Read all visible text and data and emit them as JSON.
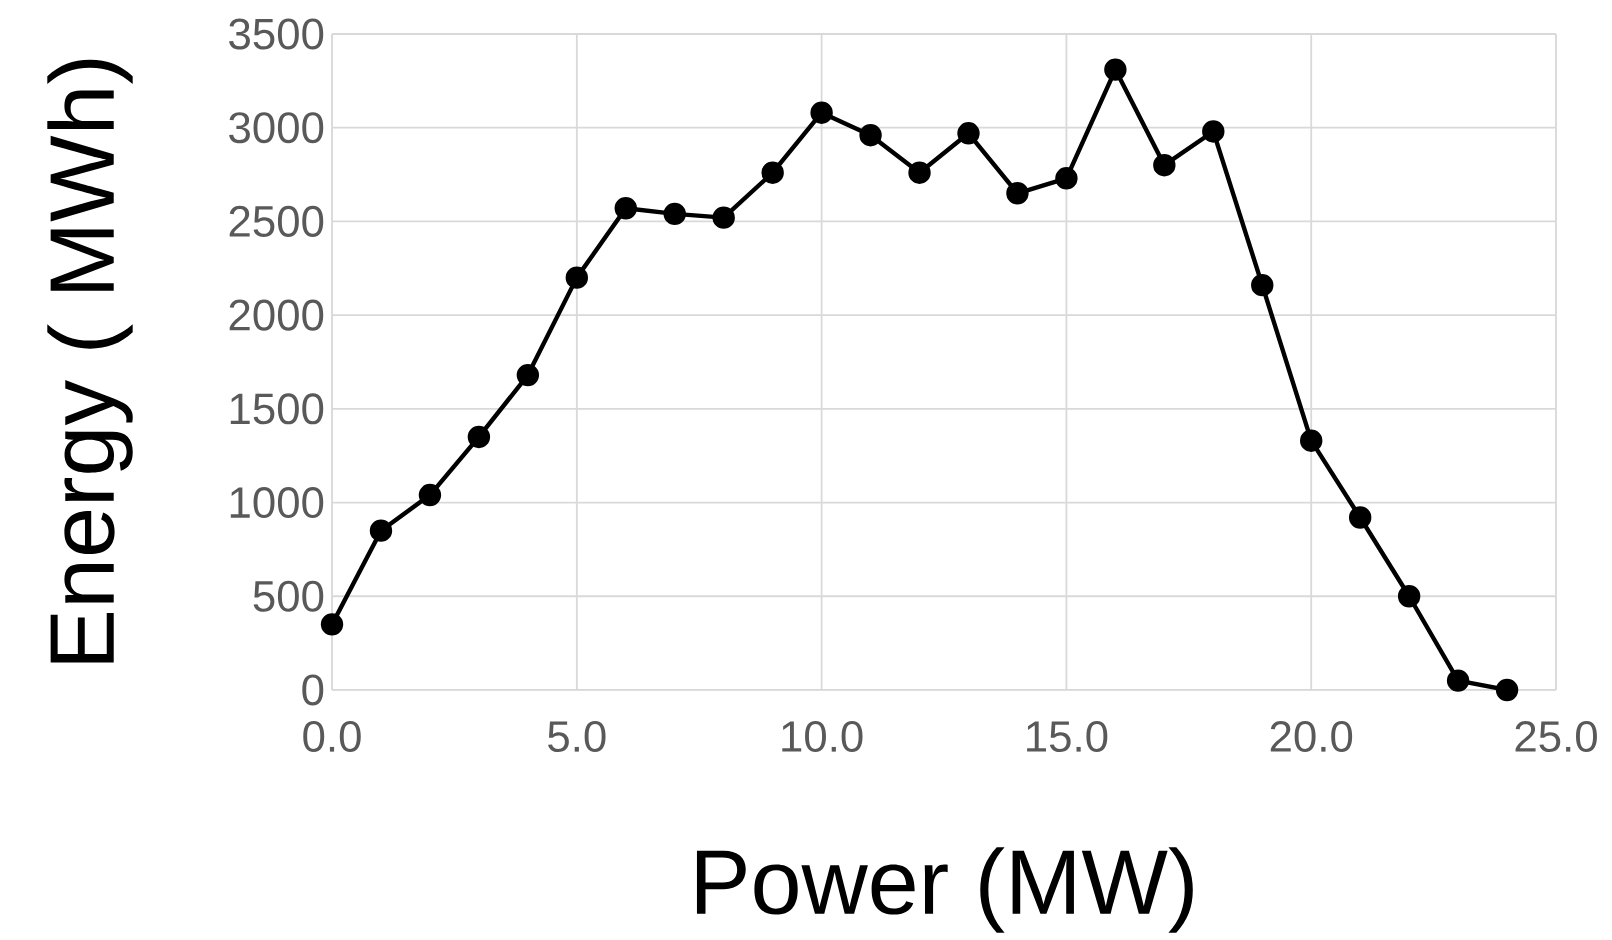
{
  "chart_data": {
    "type": "line",
    "xlabel": "Power (MW)",
    "ylabel": "Energy ( MWh)",
    "x": [
      0,
      1,
      2,
      3,
      4,
      5,
      6,
      7,
      8,
      9,
      10,
      11,
      12,
      13,
      14,
      15,
      16,
      17,
      18,
      19,
      20,
      21,
      22,
      23,
      24
    ],
    "series": [
      {
        "color": "#000000",
        "values": [
          350,
          850,
          1040,
          1350,
          1680,
          2200,
          2570,
          2540,
          2520,
          2760,
          3080,
          2960,
          2760,
          2970,
          2650,
          2730,
          3310,
          2800,
          2980,
          2160,
          1330,
          920,
          500,
          50,
          0
        ]
      }
    ],
    "xlim": [
      0,
      25
    ],
    "xticks": [
      {
        "value": 0,
        "label": "0.0"
      },
      {
        "value": 5,
        "label": "5.0"
      },
      {
        "value": 10,
        "label": "10.0"
      },
      {
        "value": 15,
        "label": "15.0"
      },
      {
        "value": 20,
        "label": "20.0"
      },
      {
        "value": 25,
        "label": "25.0"
      }
    ],
    "ylim": [
      0,
      3500
    ],
    "yticks": [
      0,
      500,
      1000,
      1500,
      2000,
      2500,
      3000,
      3500
    ],
    "grid": true,
    "marker": "circle",
    "line_style": "solid"
  }
}
